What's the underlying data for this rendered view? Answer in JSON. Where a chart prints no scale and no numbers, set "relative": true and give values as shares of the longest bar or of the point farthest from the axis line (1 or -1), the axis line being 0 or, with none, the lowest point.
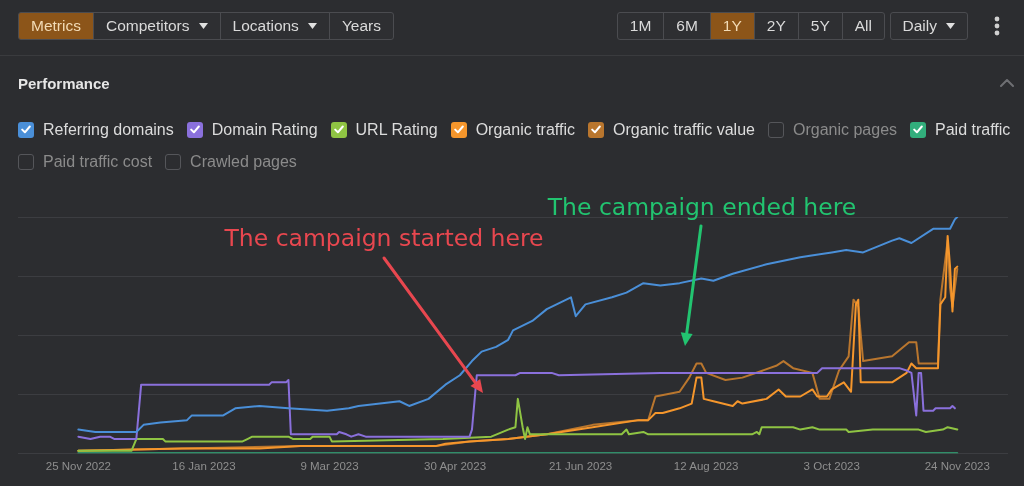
{
  "chart_data": {
    "type": "line",
    "title": "Performance",
    "relative": true,
    "legend": "top left",
    "grid": "y",
    "xlim": [
      "2022-10-31",
      "2023-12-15"
    ],
    "xticks": [
      {
        "value": "2022-11-25",
        "label": "25 Nov 2022"
      },
      {
        "value": "2023-01-16",
        "label": "16 Jan 2023"
      },
      {
        "value": "2023-03-09",
        "label": "9 Mar 2023"
      },
      {
        "value": "2023-04-30",
        "label": "30 Apr 2023"
      },
      {
        "value": "2023-06-21",
        "label": "21 Jun 2023"
      },
      {
        "value": "2023-08-12",
        "label": "12 Aug 2023"
      },
      {
        "value": "2023-10-03",
        "label": "3 Oct 2023"
      },
      {
        "value": "2023-11-24",
        "label": "24 Nov 2023"
      }
    ],
    "annotations": [
      "Metrics",
      "Competitors",
      "Locations",
      "Years",
      "1M",
      "6M",
      "1Y",
      "2Y",
      "5Y",
      "All",
      "Daily",
      "The campaign started here",
      "The campaign ended here"
    ],
    "series": [
      {
        "name": "Referring domains",
        "color": "#4a8fd8",
        "x": [
          "2022-11-25",
          "2022-12-02",
          "2022-12-19",
          "2022-12-22",
          "2022-12-29",
          "2023-01-09",
          "2023-01-11",
          "2023-01-24",
          "2023-01-29",
          "2023-02-08",
          "2023-02-20",
          "2023-03-08",
          "2023-03-17",
          "2023-03-21",
          "2023-04-07",
          "2023-04-11",
          "2023-04-19",
          "2023-04-26",
          "2023-05-02",
          "2023-05-07",
          "2023-05-11",
          "2023-05-17",
          "2023-05-22",
          "2023-05-24",
          "2023-06-01",
          "2023-06-07",
          "2023-06-17",
          "2023-06-19",
          "2023-06-23",
          "2023-07-04",
          "2023-07-10",
          "2023-07-17",
          "2023-07-24",
          "2023-08-01",
          "2023-08-10",
          "2023-08-15",
          "2023-08-23",
          "2023-09-06",
          "2023-09-20",
          "2023-10-03",
          "2023-10-09",
          "2023-10-16",
          "2023-10-28",
          "2023-10-31",
          "2023-11-05",
          "2023-11-14",
          "2023-11-21",
          "2023-11-23",
          "2023-11-24"
        ],
        "values": [
          0.1,
          0.09,
          0.09,
          0.12,
          0.13,
          0.14,
          0.16,
          0.16,
          0.19,
          0.2,
          0.19,
          0.18,
          0.19,
          0.2,
          0.22,
          0.2,
          0.23,
          0.29,
          0.33,
          0.39,
          0.43,
          0.45,
          0.48,
          0.52,
          0.56,
          0.61,
          0.66,
          0.58,
          0.63,
          0.66,
          0.68,
          0.72,
          0.71,
          0.72,
          0.74,
          0.73,
          0.76,
          0.8,
          0.83,
          0.85,
          0.86,
          0.85,
          0.9,
          0.91,
          0.89,
          0.95,
          0.95,
          0.99,
          1
        ]
      },
      {
        "name": "Domain Rating",
        "color": "#8a70dc",
        "x": [
          "2022-11-25",
          "2022-11-30",
          "2022-12-04",
          "2022-12-08",
          "2022-12-10",
          "2022-12-19",
          "2022-12-21",
          "2023-02-12",
          "2023-02-13",
          "2023-02-19",
          "2023-02-20",
          "2023-02-21",
          "2023-03-12",
          "2023-03-13",
          "2023-03-16",
          "2023-03-18",
          "2023-03-21",
          "2023-03-24",
          "2023-05-06",
          "2023-05-07",
          "2023-05-09",
          "2023-05-25",
          "2023-05-27",
          "2023-06-09",
          "2023-06-12",
          "2023-07-24",
          "2023-09-27",
          "2023-09-29",
          "2023-10-31",
          "2023-11-03",
          "2023-11-05",
          "2023-11-07",
          "2023-11-08",
          "2023-11-09",
          "2023-11-10",
          "2023-11-14",
          "2023-11-15",
          "2023-11-21",
          "2023-11-22",
          "2023-11-23"
        ],
        "values": [
          0.07,
          0.06,
          0.07,
          0.07,
          0.06,
          0.06,
          0.29,
          0.29,
          0.3,
          0.3,
          0.31,
          0.08,
          0.08,
          0.09,
          0.08,
          0.07,
          0.08,
          0.07,
          0.07,
          0.1,
          0.33,
          0.33,
          0.34,
          0.34,
          0.33,
          0.34,
          0.34,
          0.36,
          0.36,
          0.35,
          0.34,
          0.16,
          0.34,
          0.34,
          0.18,
          0.18,
          0.19,
          0.19,
          0.2,
          0.19
        ]
      },
      {
        "name": "URL Rating",
        "color": "#8fc443",
        "x": [
          "2022-11-25",
          "2022-12-17",
          "2022-12-19",
          "2022-12-30",
          "2022-12-31",
          "2023-02-01",
          "2023-02-03",
          "2023-02-05",
          "2023-02-20",
          "2023-02-22",
          "2023-03-01",
          "2023-03-02",
          "2023-03-09",
          "2023-03-10",
          "2023-04-25",
          "2023-05-15",
          "2023-05-22",
          "2023-05-25",
          "2023-05-26",
          "2023-05-28",
          "2023-05-29",
          "2023-05-30",
          "2023-05-31",
          "2023-06-07",
          "2023-07-08",
          "2023-07-10",
          "2023-07-11",
          "2023-07-17",
          "2023-07-19",
          "2023-08-31",
          "2023-09-02",
          "2023-09-03",
          "2023-09-04",
          "2023-09-17",
          "2023-09-20",
          "2023-09-25",
          "2023-09-28",
          "2023-10-09",
          "2023-10-10",
          "2023-10-20",
          "2023-11-08",
          "2023-11-11",
          "2023-11-18",
          "2023-11-20",
          "2023-11-24"
        ],
        "values": [
          0.01,
          0.01,
          0.06,
          0.06,
          0.05,
          0.05,
          0.06,
          0.07,
          0.07,
          0.06,
          0.06,
          0.07,
          0.07,
          0.05,
          0.06,
          0.07,
          0.1,
          0.11,
          0.23,
          0.11,
          0.06,
          0.11,
          0.08,
          0.08,
          0.08,
          0.1,
          0.08,
          0.09,
          0.08,
          0.08,
          0.09,
          0.08,
          0.11,
          0.11,
          0.1,
          0.11,
          0.1,
          0.1,
          0.09,
          0.1,
          0.1,
          0.09,
          0.1,
          0.11,
          0.1
        ]
      },
      {
        "name": "Organic traffic",
        "color": "#f5962c",
        "x": [
          "2022-11-25",
          "2023-01-07",
          "2023-02-08",
          "2023-02-25",
          "2023-03-30",
          "2023-04-22",
          "2023-04-26",
          "2023-05-06",
          "2023-05-22",
          "2023-06-07",
          "2023-06-26",
          "2023-07-15",
          "2023-07-19",
          "2023-07-22",
          "2023-07-25",
          "2023-08-01",
          "2023-08-06",
          "2023-08-08",
          "2023-08-10",
          "2023-08-11",
          "2023-08-15",
          "2023-08-23",
          "2023-08-25",
          "2023-08-27",
          "2023-09-06",
          "2023-09-11",
          "2023-09-14",
          "2023-09-20",
          "2023-09-25",
          "2023-09-27",
          "2023-10-01",
          "2023-10-03",
          "2023-10-08",
          "2023-10-11",
          "2023-10-13",
          "2023-10-14",
          "2023-10-15",
          "2023-10-17",
          "2023-10-23",
          "2023-10-28",
          "2023-11-03",
          "2023-11-05",
          "2023-11-07",
          "2023-11-09",
          "2023-11-16",
          "2023-11-17",
          "2023-11-19",
          "2023-11-20",
          "2023-11-21",
          "2023-11-22",
          "2023-11-23",
          "2023-11-24"
        ],
        "values": [
          0.01,
          0.02,
          0.02,
          0.03,
          0.03,
          0.03,
          0.04,
          0.05,
          0.06,
          0.08,
          0.11,
          0.14,
          0.14,
          0.17,
          0.17,
          0.19,
          0.21,
          0.32,
          0.32,
          0.23,
          0.22,
          0.2,
          0.22,
          0.21,
          0.23,
          0.27,
          0.24,
          0.24,
          0.27,
          0.24,
          0.24,
          0.27,
          0.3,
          0.26,
          0.63,
          0.65,
          0.3,
          0.3,
          0.3,
          0.3,
          0.34,
          0.38,
          0.36,
          0.36,
          0.36,
          0.63,
          0.66,
          0.92,
          0.79,
          0.6,
          0.78,
          0.79
        ]
      },
      {
        "name": "Organic traffic value",
        "color": "#b9762e",
        "x": [
          "2022-11-25",
          "2023-01-07",
          "2023-02-25",
          "2023-04-22",
          "2023-05-06",
          "2023-05-22",
          "2023-06-07",
          "2023-06-26",
          "2023-07-15",
          "2023-07-19",
          "2023-07-22",
          "2023-08-01",
          "2023-08-05",
          "2023-08-08",
          "2023-08-10",
          "2023-08-12",
          "2023-08-20",
          "2023-08-27",
          "2023-09-10",
          "2023-09-13",
          "2023-09-17",
          "2023-09-25",
          "2023-09-28",
          "2023-10-02",
          "2023-10-06",
          "2023-10-10",
          "2023-10-12",
          "2023-10-14",
          "2023-10-16",
          "2023-10-28",
          "2023-11-04",
          "2023-11-07",
          "2023-11-08",
          "2023-11-16",
          "2023-11-17",
          "2023-11-20",
          "2023-11-21",
          "2023-11-22",
          "2023-11-24"
        ],
        "values": [
          0.01,
          0.02,
          0.03,
          0.03,
          0.05,
          0.06,
          0.08,
          0.12,
          0.14,
          0.14,
          0.24,
          0.26,
          0.32,
          0.38,
          0.38,
          0.34,
          0.31,
          0.32,
          0.37,
          0.39,
          0.36,
          0.34,
          0.23,
          0.23,
          0.35,
          0.41,
          0.65,
          0.62,
          0.39,
          0.41,
          0.47,
          0.47,
          0.38,
          0.38,
          0.65,
          0.9,
          0.7,
          0.62,
          0.78
        ]
      },
      {
        "name": "Organic pages"
      },
      {
        "name": "Paid traffic",
        "color": "#32ae7c",
        "x": [
          "2022-11-25",
          "2023-11-24"
        ],
        "values": [
          0,
          0
        ]
      },
      {
        "name": "Paid traffic cost"
      },
      {
        "name": "Crawled pages"
      }
    ]
  }
}
